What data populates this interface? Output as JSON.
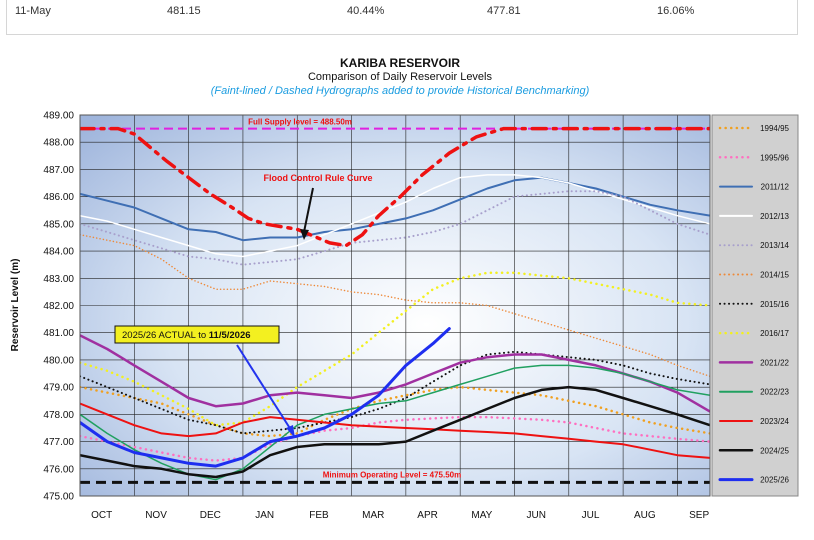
{
  "table_row": {
    "date": "11-May",
    "c1": "481.15",
    "c2": "40.44%",
    "c3": "477.81",
    "c4": "16.06%"
  },
  "chart_data": {
    "type": "line",
    "title": "KARIBA RESERVOIR",
    "subtitle": "Comparison of Daily Reservoir Levels",
    "note": "(Faint-lined / Dashed Hydrographs added to provide Historical Benchmarking)",
    "ylabel": "Reservoir Level (m)",
    "xlabel": "",
    "ylim": [
      475.0,
      489.0
    ],
    "yticks": [
      489.0,
      488.0,
      487.0,
      486.0,
      485.0,
      484.0,
      483.0,
      482.0,
      481.0,
      480.0,
      479.0,
      478.0,
      477.0,
      476.0,
      475.0
    ],
    "categories": [
      "OCT",
      "NOV",
      "DEC",
      "JAN",
      "FEB",
      "MAR",
      "APR",
      "MAY",
      "JUN",
      "JUL",
      "AUG",
      "SEP"
    ],
    "grid": true,
    "legend_position": "right",
    "annotations": {
      "full_supply": "Full Supply level = 488.50m",
      "min_operating": "Minimum  Operating Level = 475.50m",
      "rule_curve": "Flood Control Rule Curve",
      "actual_prefix": "2025/26 ACTUAL to ",
      "actual_date": "11/5/2026"
    },
    "reference_lines": [
      {
        "name": "Full Supply level",
        "value": 488.5,
        "color": "#e020e0"
      },
      {
        "name": "Minimum Operating Level",
        "value": 475.5,
        "color": "#111111"
      }
    ],
    "rule_curve": {
      "color": "#ee1111",
      "x": [
        0,
        0.4,
        0.7,
        1.0,
        1.3,
        1.6,
        2.0,
        2.4,
        2.8,
        3.1,
        3.4,
        3.7,
        4.0,
        4.3,
        4.6,
        4.9,
        5.2,
        5.5,
        5.9,
        6.3,
        6.8,
        7.3,
        7.8,
        8.3,
        8.8,
        9.3,
        9.8,
        10.3,
        10.8,
        11.6
      ],
      "y": [
        488.5,
        488.5,
        488.5,
        488.3,
        487.8,
        487.3,
        486.7,
        486.1,
        485.6,
        485.2,
        485.0,
        484.9,
        484.8,
        484.55,
        484.3,
        484.2,
        484.6,
        485.3,
        486.0,
        486.8,
        487.6,
        488.2,
        488.5,
        488.5,
        488.5,
        488.5,
        488.5,
        488.5,
        488.5,
        488.5
      ]
    },
    "x": [
      0,
      0.5,
      1,
      1.5,
      2,
      2.5,
      3,
      3.5,
      4,
      4.5,
      5,
      5.5,
      6,
      6.5,
      7,
      7.5,
      8,
      8.5,
      9,
      9.5,
      10,
      10.5,
      11,
      11.6
    ],
    "series": [
      {
        "name": "1994/95",
        "color": "#f0a020",
        "style": "dotted",
        "width": 2.5,
        "values": [
          479.0,
          478.8,
          478.6,
          478.4,
          478.0,
          477.6,
          477.3,
          477.2,
          477.3,
          477.8,
          478.2,
          478.5,
          478.7,
          478.9,
          479.0,
          478.9,
          478.8,
          478.7,
          478.5,
          478.3,
          478.0,
          477.7,
          477.5,
          477.3
        ]
      },
      {
        "name": "1995/96",
        "color": "#ff6fc0",
        "style": "dotted",
        "width": 2.5,
        "values": [
          477.2,
          477.0,
          476.8,
          476.6,
          476.4,
          476.3,
          476.4,
          476.9,
          477.2,
          477.4,
          477.5,
          477.7,
          477.8,
          477.85,
          477.9,
          477.9,
          477.85,
          477.8,
          477.7,
          477.5,
          477.3,
          477.2,
          477.1,
          477.0
        ]
      },
      {
        "name": "2011/12",
        "color": "#3f6fb4",
        "style": "solid",
        "width": 2,
        "values": [
          486.1,
          485.85,
          485.6,
          485.2,
          484.8,
          484.7,
          484.4,
          484.5,
          484.5,
          484.7,
          484.8,
          485.0,
          485.2,
          485.5,
          485.9,
          486.3,
          486.6,
          486.7,
          486.5,
          486.3,
          486.0,
          485.7,
          485.5,
          485.3
        ]
      },
      {
        "name": "2012/13",
        "color": "#ffffff",
        "style": "solid",
        "width": 1.5,
        "values": [
          485.3,
          485.1,
          484.8,
          484.5,
          484.2,
          483.9,
          483.8,
          484.0,
          484.2,
          484.6,
          485.0,
          485.4,
          485.8,
          486.3,
          486.7,
          486.8,
          486.8,
          486.7,
          486.5,
          486.2,
          485.9,
          485.6,
          485.3,
          485.0
        ]
      },
      {
        "name": "2013/14",
        "color": "#a8a0cc",
        "style": "dotted",
        "width": 2,
        "values": [
          485.0,
          484.7,
          484.4,
          484.1,
          483.8,
          483.7,
          483.5,
          483.6,
          483.7,
          484.0,
          484.3,
          484.4,
          484.5,
          484.7,
          485.0,
          485.5,
          486.0,
          486.1,
          486.2,
          486.2,
          486.0,
          485.5,
          485.0,
          484.6
        ]
      },
      {
        "name": "2014/15",
        "color": "#ee8a3a",
        "style": "dotted",
        "width": 1.5,
        "values": [
          484.6,
          484.4,
          484.2,
          483.7,
          483.0,
          482.6,
          482.6,
          482.9,
          482.8,
          482.7,
          482.5,
          482.4,
          482.2,
          482.1,
          482.1,
          482.0,
          481.7,
          481.4,
          481.1,
          480.8,
          480.5,
          480.2,
          479.8,
          479.4
        ]
      },
      {
        "name": "2015/16",
        "color": "#111111",
        "style": "dotted",
        "width": 2,
        "values": [
          479.4,
          479.0,
          478.6,
          478.2,
          477.8,
          477.6,
          477.3,
          477.4,
          477.5,
          477.7,
          477.9,
          478.2,
          478.6,
          479.2,
          479.8,
          480.2,
          480.3,
          480.2,
          480.1,
          480.0,
          479.8,
          479.5,
          479.3,
          479.1
        ]
      },
      {
        "name": "2016/17",
        "color": "#f3f020",
        "style": "dotted",
        "width": 2.5,
        "values": [
          479.9,
          479.6,
          479.2,
          478.7,
          478.2,
          477.6,
          477.7,
          478.3,
          479.0,
          479.6,
          480.2,
          481.0,
          481.8,
          482.6,
          483.0,
          483.2,
          483.2,
          483.1,
          483.0,
          482.8,
          482.6,
          482.4,
          482.1,
          482.0
        ]
      },
      {
        "name": "2021/22",
        "color": "#a030a0",
        "style": "solid",
        "width": 2.5,
        "values": [
          480.9,
          480.4,
          479.8,
          479.2,
          478.6,
          478.3,
          478.4,
          478.7,
          478.8,
          478.7,
          478.6,
          478.8,
          479.1,
          479.5,
          479.9,
          480.1,
          480.2,
          480.2,
          480.0,
          479.8,
          479.5,
          479.2,
          478.8,
          478.1
        ]
      },
      {
        "name": "2022/23",
        "color": "#20a060",
        "style": "solid",
        "width": 1.5,
        "values": [
          478.0,
          477.3,
          476.7,
          476.2,
          475.8,
          475.6,
          476.0,
          476.8,
          477.6,
          478.0,
          478.2,
          478.4,
          478.5,
          478.8,
          479.1,
          479.4,
          479.7,
          479.8,
          479.8,
          479.7,
          479.5,
          479.2,
          478.9,
          478.7
        ]
      },
      {
        "name": "2023/24",
        "color": "#ee1111",
        "style": "solid",
        "width": 2,
        "values": [
          478.4,
          478.0,
          477.6,
          477.3,
          477.2,
          477.3,
          477.7,
          477.9,
          477.8,
          477.7,
          477.6,
          477.55,
          477.5,
          477.45,
          477.4,
          477.35,
          477.3,
          477.2,
          477.1,
          477.0,
          476.9,
          476.7,
          476.5,
          476.4
        ]
      },
      {
        "name": "2024/25",
        "color": "#111111",
        "style": "solid",
        "width": 2.5,
        "values": [
          476.5,
          476.3,
          476.1,
          476.0,
          475.8,
          475.7,
          475.9,
          476.5,
          476.8,
          476.9,
          476.9,
          476.9,
          477.0,
          477.4,
          477.8,
          478.2,
          478.6,
          478.9,
          479.0,
          478.9,
          478.6,
          478.3,
          478.0,
          477.6
        ]
      },
      {
        "name": "2025/26",
        "color": "#1e2ef0",
        "style": "solid",
        "width": 3,
        "x": [
          0,
          0.5,
          1,
          1.5,
          2,
          2.5,
          3,
          3.5,
          4,
          4.5,
          5,
          5.5,
          6,
          6.5,
          6.8
        ],
        "values": [
          477.7,
          477.0,
          476.6,
          476.4,
          476.2,
          476.1,
          476.4,
          477.0,
          477.2,
          477.5,
          478.0,
          478.7,
          479.8,
          480.6,
          481.15
        ]
      }
    ]
  }
}
